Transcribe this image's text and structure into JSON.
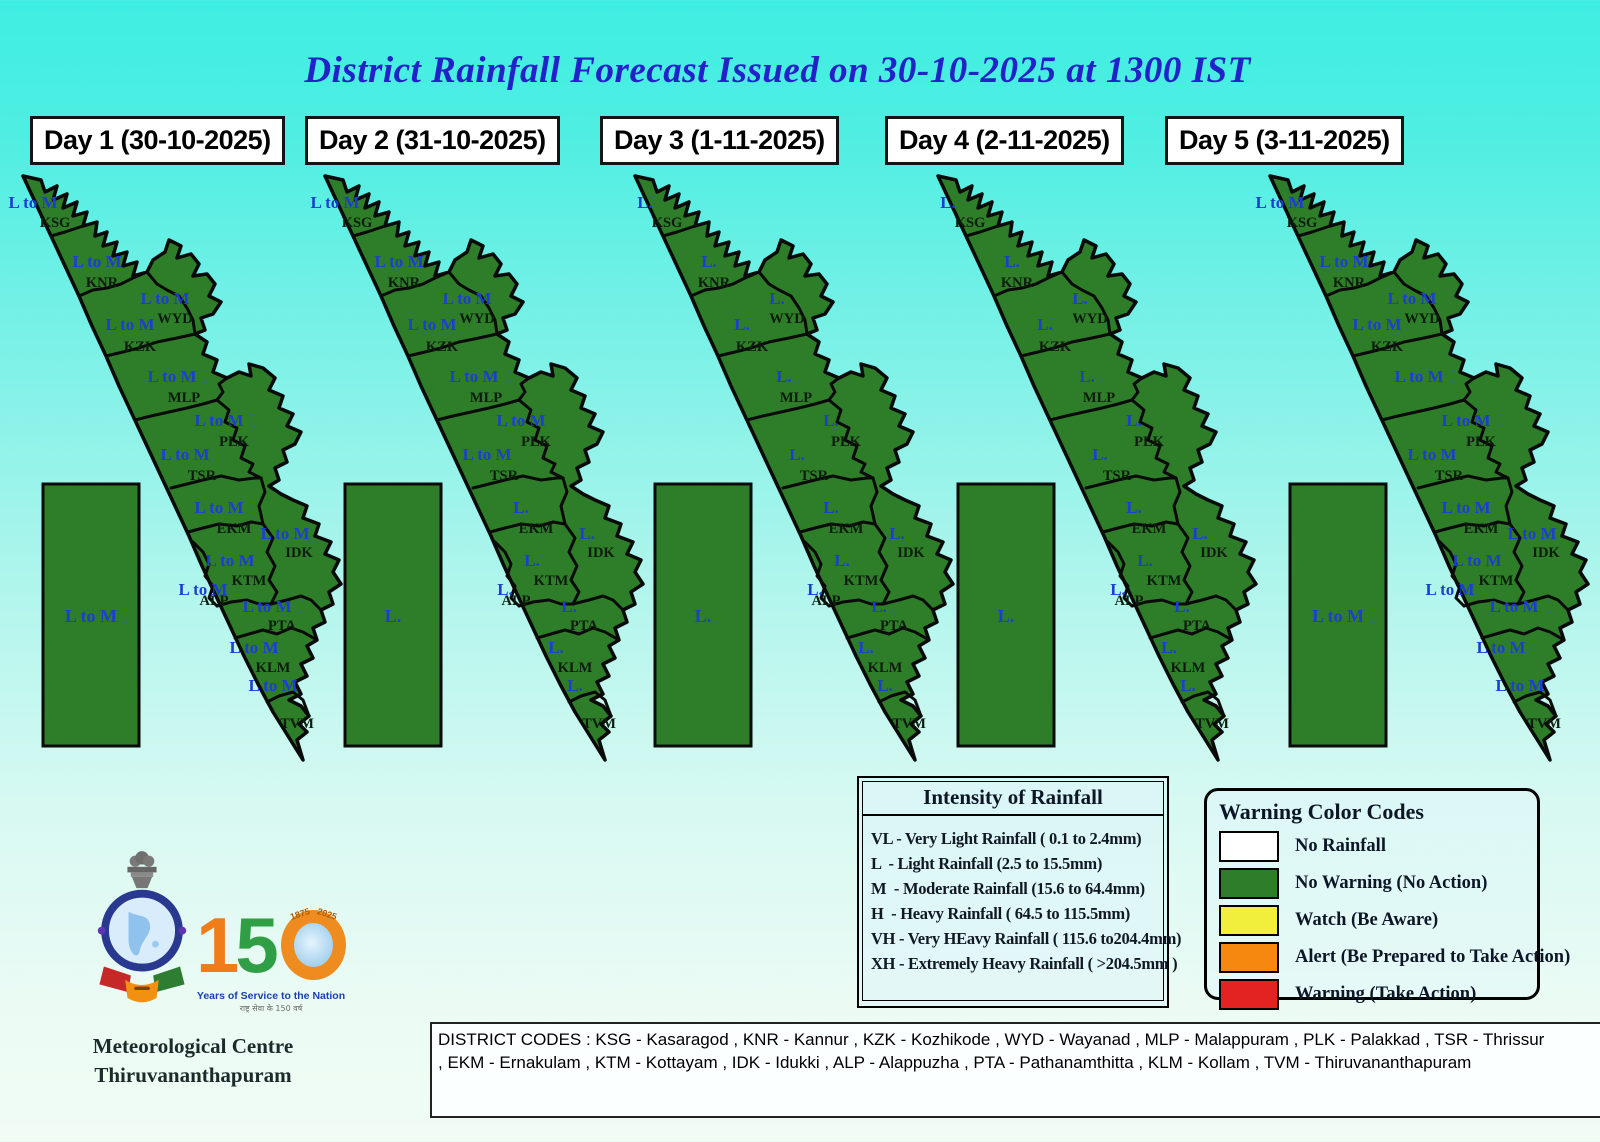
{
  "title": "District Rainfall Forecast Issued on  30-10-2025 at 1300 IST",
  "colors": {
    "map_green": "#2e7d28",
    "label_blue": "#1c3ed2",
    "title_blue": "#2222c8",
    "background_top": "#3eeee2",
    "background_bottom": "#f0fcf5"
  },
  "district_codes_order": [
    "KSG",
    "KNR",
    "WYD",
    "KZK",
    "MLP",
    "PLK",
    "TSR",
    "EKM",
    "IDK",
    "KTM",
    "ALP",
    "PTA",
    "KLM",
    "TVM"
  ],
  "days": [
    {
      "label": "Day 1 (30-10-2025)",
      "sea_box_value": "L to M",
      "values": [
        "L to M",
        "L to M",
        "L to M",
        "L to M",
        "L to M",
        "L to M",
        "L to M",
        "L to M",
        "L to M",
        "L to M",
        "L to M",
        "L to M",
        "L to M",
        "L to M"
      ],
      "hidden_codes": []
    },
    {
      "label": "Day 2 (31-10-2025)",
      "sea_box_value": "L.",
      "values": [
        "L to M",
        "L to M",
        "L to M",
        "L to M",
        "L to M",
        "L to M",
        "L to M",
        "L.",
        "L.",
        "L.",
        "L.",
        "L.",
        "L.",
        "L."
      ],
      "hidden_codes": []
    },
    {
      "label": "Day 3 (1-11-2025)",
      "sea_box_value": "L.",
      "values": [
        "L.",
        "L.",
        "L.",
        "L.",
        "L.",
        "L.",
        "L.",
        "L.",
        "L.",
        "L.",
        "L.",
        "L.",
        "L.",
        "L."
      ],
      "hidden_codes": []
    },
    {
      "label": "Day 4 (2-11-2025)",
      "sea_box_value": "L.",
      "values": [
        "L.",
        "L.",
        "L.",
        "L.",
        "L.",
        "L.",
        "L.",
        "L.",
        "L.",
        "L.",
        "L.",
        "L.",
        "L.",
        "L."
      ],
      "hidden_codes": []
    },
    {
      "label": "Day 5 (3-11-2025)",
      "sea_box_value": "L to M",
      "values": [
        "L to M",
        "L to M",
        "L to M",
        "L to M",
        "L to M",
        "L to M",
        "L to M",
        "L to M",
        "L to M",
        "L to M",
        "L to M",
        "L to M",
        "L to M",
        "L to M"
      ],
      "hidden_codes": [
        "MLP",
        "ALP",
        "PTA",
        "KLM"
      ]
    }
  ],
  "intensity_legend": {
    "title": "Intensity of Rainfall",
    "items": [
      "VL - Very Light Rainfall ( 0.1 to 2.4mm)",
      "L  - Light Rainfall (2.5 to 15.5mm)",
      "M  - Moderate Rainfall (15.6 to 64.4mm)",
      "H  - Heavy Rainfall ( 64.5 to 115.5mm)",
      "VH - Very HEavy Rainfall ( 115.6 to204.4mm)",
      "XH - Extremely Heavy Rainfall ( >204.5mm )"
    ]
  },
  "warning_color_codes": {
    "title": "Warning Color Codes",
    "items": [
      {
        "label": "No Rainfall",
        "hex": "#ffffff"
      },
      {
        "label": "No Warning (No Action)",
        "hex": "#2e7d2b"
      },
      {
        "label": "Watch (Be Aware)",
        "hex": "#f2ee3c"
      },
      {
        "label": "Alert (Be Prepared to Take Action)",
        "hex": "#f6870f"
      },
      {
        "label": "Warning (Take Action)",
        "hex": "#e32322"
      }
    ]
  },
  "logo_150": {
    "digits": [
      "1",
      "5"
    ],
    "year_left": "1875",
    "year_right": "2025",
    "caption": "Years of Service to the Nation",
    "caption_hindi": "राष्ट्र सेवा के 150 वर्ष"
  },
  "organisation": {
    "line1": "Meteorological Centre",
    "line2": "Thiruvananthapuram"
  },
  "district_codes_footer": {
    "line1": "DISTRICT CODES : KSG - Kasaragod , KNR - Kannur , KZK - Kozhikode ,  WYD - Wayanad , MLP - Malappuram , PLK - Palakkad , TSR - Thrissur",
    "line2": ", EKM - Ernakulam , KTM - Kottayam , IDK - Idukki , ALP - Alappuzha ,    PTA - Pathanamthitta , KLM - Kollam , TVM - Thiruvananthapuram"
  }
}
